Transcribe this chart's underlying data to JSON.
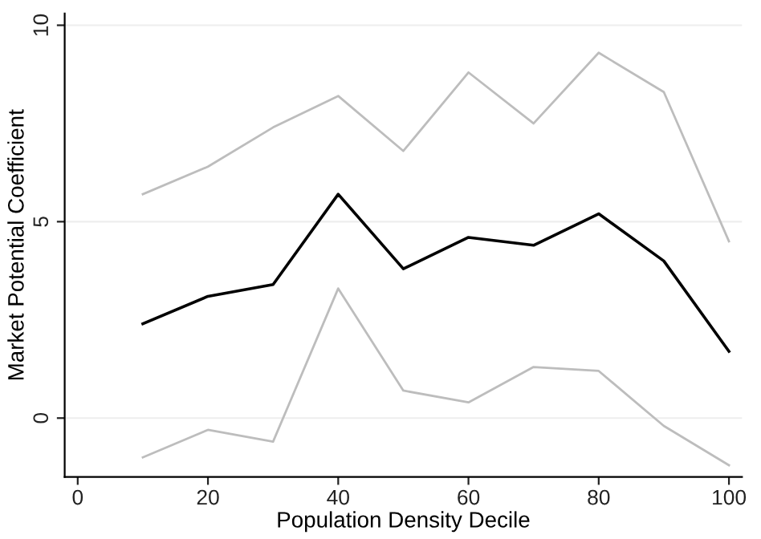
{
  "chart_data": {
    "type": "line",
    "xlabel": "Population Density Decile",
    "ylabel": "Market Potential Coefficient",
    "x": [
      10,
      20,
      30,
      40,
      50,
      60,
      70,
      80,
      90,
      100
    ],
    "series": [
      {
        "color": "#bdbdbd",
        "values": [
          5.7,
          6.4,
          7.4,
          8.2,
          6.8,
          8.8,
          7.5,
          9.3,
          8.3,
          4.5
        ]
      },
      {
        "color": "#000000",
        "values": [
          2.4,
          3.1,
          3.4,
          5.7,
          3.8,
          4.6,
          4.4,
          5.2,
          4.0,
          1.7
        ]
      },
      {
        "color": "#bdbdbd",
        "values": [
          -1.0,
          -0.3,
          -0.6,
          3.3,
          0.7,
          0.4,
          1.3,
          1.2,
          -0.2,
          -1.2
        ]
      }
    ],
    "xlim": [
      -2,
      102
    ],
    "ylim": [
      -1.5,
      10.3
    ],
    "xticks": [
      0,
      20,
      40,
      60,
      80,
      100
    ],
    "yticks": [
      0,
      5,
      10
    ],
    "grid": "y",
    "legend": false,
    "marker": "none",
    "line_style": "solid"
  }
}
